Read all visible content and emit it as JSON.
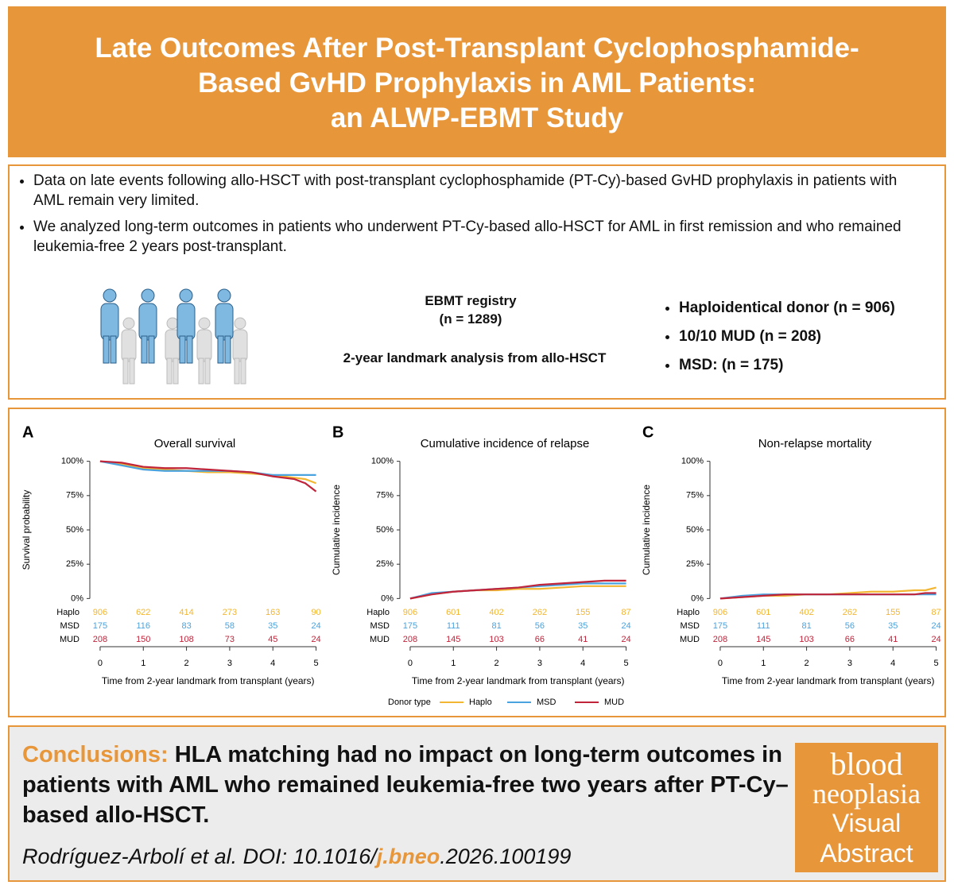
{
  "header": {
    "title_lines": [
      "Late Outcomes After Post-Transplant Cyclophosphamide-",
      "Based GvHD Prophylaxis in AML Patients:",
      "an ALWP-EBMT Study"
    ]
  },
  "intro": {
    "bullets": [
      "Data on late events following allo-HSCT with post-transplant cyclophosphamide (PT-Cy)-based GvHD prophylaxis in patients with AML remain very limited.",
      "We analyzed long-term outcomes in patients who underwent PT-Cy-based allo-HSCT for AML in first remission and who remained leukemia-free 2 years post-transplant."
    ]
  },
  "study": {
    "registry": "EBMT registry",
    "n": "(n = 1289)",
    "landmark": "2-year landmark analysis from allo-HSCT",
    "donors": [
      "Haploidentical donor (n = 906)",
      "10/10 MUD (n = 208)",
      "MSD: (n = 175)"
    ]
  },
  "chart_data": [
    {
      "type": "line",
      "panel": "A",
      "title": "Overall survival",
      "ylabel": "Survival probability",
      "xlabel": "Time from 2-year landmark from transplant (years)",
      "x": [
        0,
        0.5,
        1,
        1.5,
        2,
        2.5,
        3,
        3.5,
        4,
        4.5,
        4.75,
        5
      ],
      "series": [
        {
          "name": "Haplo",
          "color": "#f2b632",
          "values": [
            100,
            98,
            95,
            94,
            93,
            92,
            92,
            91,
            90,
            88,
            87,
            84
          ]
        },
        {
          "name": "MSD",
          "color": "#4aa3df",
          "values": [
            100,
            97,
            94,
            93,
            93,
            93,
            93,
            92,
            90,
            90,
            90,
            90
          ]
        },
        {
          "name": "MUD",
          "color": "#c0243a",
          "values": [
            100,
            99,
            96,
            95,
            95,
            94,
            93,
            92,
            89,
            87,
            84,
            78
          ]
        }
      ],
      "xlim": [
        -0.33,
        5.1
      ],
      "xticks": [
        0,
        1,
        2,
        3,
        4,
        5
      ],
      "ylim": [
        -5,
        105
      ],
      "yticks": [
        {
          "value": 0,
          "label": "0%"
        },
        {
          "value": 25,
          "label": "25%"
        },
        {
          "value": 50,
          "label": "50%"
        },
        {
          "value": 75,
          "label": "75%"
        },
        {
          "value": 100,
          "label": "100%"
        }
      ],
      "risk_table": [
        [
          906,
          622,
          414,
          273,
          163,
          90
        ],
        [
          175,
          116,
          83,
          58,
          35,
          24
        ],
        [
          208,
          150,
          108,
          73,
          45,
          24
        ]
      ]
    },
    {
      "type": "line",
      "panel": "B",
      "title": "Cumulative incidence of relapse",
      "ylabel": "Cumulative incidence",
      "xlabel": "Time from 2-year landmark from transplant (years)",
      "x": [
        0,
        0.5,
        1,
        1.5,
        2,
        2.5,
        3,
        3.5,
        4,
        4.5,
        4.75,
        5
      ],
      "series": [
        {
          "name": "Haplo",
          "color": "#f2b632",
          "values": [
            0,
            3,
            5,
            6,
            6,
            7,
            7,
            8,
            9,
            9,
            9,
            9
          ]
        },
        {
          "name": "MSD",
          "color": "#4aa3df",
          "values": [
            0,
            4,
            5,
            6,
            7,
            8,
            9,
            10,
            11,
            11,
            11,
            11
          ]
        },
        {
          "name": "MUD",
          "color": "#c0243a",
          "values": [
            0,
            3,
            5,
            6,
            7,
            8,
            10,
            11,
            12,
            13,
            13,
            13
          ]
        }
      ],
      "xlim": [
        -0.33,
        5.1
      ],
      "xticks": [
        0,
        1,
        2,
        3,
        4,
        5
      ],
      "ylim": [
        -5,
        105
      ],
      "yticks": [
        {
          "value": 0,
          "label": "0%"
        },
        {
          "value": 25,
          "label": "25%"
        },
        {
          "value": 50,
          "label": "50%"
        },
        {
          "value": 75,
          "label": "75%"
        },
        {
          "value": 100,
          "label": "100%"
        }
      ],
      "risk_table": [
        [
          906,
          601,
          402,
          262,
          155,
          87
        ],
        [
          175,
          111,
          81,
          56,
          35,
          24
        ],
        [
          208,
          145,
          103,
          66,
          41,
          24
        ]
      ]
    },
    {
      "type": "line",
      "panel": "C",
      "title": "Non-relapse mortality",
      "ylabel": "Cumulative incidence",
      "xlabel": "Time from 2-year landmark from transplant (years)",
      "x": [
        0,
        0.5,
        1,
        1.5,
        2,
        2.5,
        3,
        3.5,
        4,
        4.5,
        4.75,
        5
      ],
      "series": [
        {
          "name": "Haplo",
          "color": "#f2b632",
          "values": [
            0,
            1,
            2,
            2,
            3,
            3,
            4,
            5,
            5,
            6,
            6,
            8
          ]
        },
        {
          "name": "MSD",
          "color": "#4aa3df",
          "values": [
            0,
            2,
            3,
            3,
            3,
            3,
            3,
            3,
            3,
            3,
            3,
            3
          ]
        },
        {
          "name": "MUD",
          "color": "#c0243a",
          "values": [
            0,
            1,
            2,
            3,
            3,
            3,
            3,
            3,
            3,
            3,
            4,
            4
          ]
        }
      ],
      "xlim": [
        -0.33,
        5.1
      ],
      "xticks": [
        0,
        1,
        2,
        3,
        4,
        5
      ],
      "ylim": [
        -5,
        105
      ],
      "yticks": [
        {
          "value": 0,
          "label": "0%"
        },
        {
          "value": 25,
          "label": "25%"
        },
        {
          "value": 50,
          "label": "50%"
        },
        {
          "value": 75,
          "label": "75%"
        },
        {
          "value": 100,
          "label": "100%"
        }
      ],
      "risk_table": [
        [
          906,
          601,
          402,
          262,
          155,
          87
        ],
        [
          175,
          111,
          81,
          56,
          35,
          24
        ],
        [
          208,
          145,
          103,
          66,
          41,
          24
        ]
      ]
    }
  ],
  "legend": {
    "title": "Donor type"
  },
  "conclusions": {
    "label": "Conclusions:",
    "text": "HLA matching had no impact on long-term outcomes in patients with AML who remained leukemia-free two years after PT-Cy–based allo-HSCT.",
    "citation": [
      "Rodríguez-Arbolí  et al. DOI: 10.1016/",
      "j.bneo",
      ".2026.100199"
    ]
  },
  "logo": {
    "lines": [
      "blood",
      "neoplasia",
      "Visual",
      "Abstract"
    ]
  }
}
